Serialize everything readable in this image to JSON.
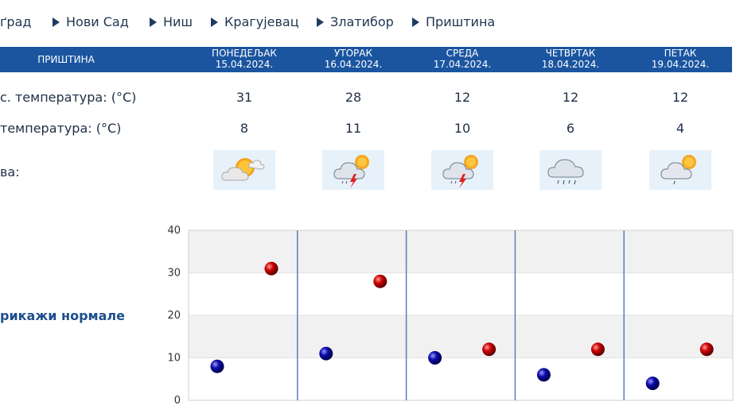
{
  "nav": [
    {
      "label": "ґрад",
      "arrow": false
    },
    {
      "label": "Нови Сад",
      "arrow": true
    },
    {
      "label": "Ниш",
      "arrow": true
    },
    {
      "label": "Крагујевац",
      "arrow": true
    },
    {
      "label": "Златибор",
      "arrow": true
    },
    {
      "label": "Приштина",
      "arrow": true
    }
  ],
  "table": {
    "city": "ПРИШТИНА",
    "days": [
      {
        "name": "ПОНЕДЕЉАК",
        "date": "15.04.2024.",
        "max": "31",
        "min": "8",
        "icon": "sun-cloud-icon"
      },
      {
        "name": "УТОРАК",
        "date": "16.04.2024.",
        "max": "28",
        "min": "11",
        "icon": "thunderstorm-icon"
      },
      {
        "name": "СРЕДА",
        "date": "17.04.2024.",
        "max": "12",
        "min": "10",
        "icon": "thunderstorm-icon"
      },
      {
        "name": "ЧЕТВРТАК",
        "date": "18.04.2024.",
        "max": "12",
        "min": "6",
        "icon": "rain-cloud-icon"
      },
      {
        "name": "ПЕТАК",
        "date": "19.04.2024.",
        "max": "12",
        "min": "4",
        "icon": "light-rain-sun-icon"
      }
    ],
    "labels": {
      "max_temp": "с. температура: (°C)",
      "min_temp": "температура: (°C)",
      "sky": "ва:"
    }
  },
  "normals_label": "рикажи нормале",
  "colors": {
    "header": "#1b55a0",
    "max_marker": "#cc0000",
    "min_marker": "#0a0aa8",
    "grid_band": "#f1f1f1"
  },
  "chart_data": {
    "type": "scatter",
    "ylim": [
      0,
      40
    ],
    "yticks": [
      0,
      10,
      20,
      30,
      40
    ],
    "categories": [
      "15.04.2024.",
      "16.04.2024.",
      "17.04.2024.",
      "18.04.2024.",
      "19.04.2024."
    ],
    "series": [
      {
        "values": [
          8,
          11,
          10,
          6,
          4
        ]
      },
      {
        "values": [
          31,
          28,
          12,
          12,
          12
        ]
      }
    ]
  }
}
